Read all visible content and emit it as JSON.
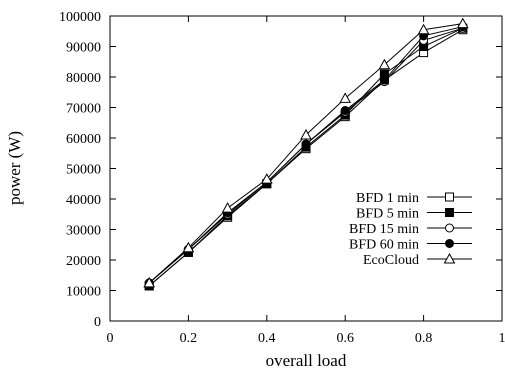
{
  "chart_data": {
    "type": "line",
    "xlabel": "overall load",
    "ylabel": "power (W)",
    "xlim": [
      0,
      1
    ],
    "ylim": [
      0,
      100000
    ],
    "x_ticks": [
      0,
      0.2,
      0.4,
      0.6,
      0.8,
      1
    ],
    "x_tick_labels": [
      "0",
      "0.2",
      "0.4",
      "0.6",
      "0.8",
      "1"
    ],
    "y_ticks": [
      0,
      10000,
      20000,
      30000,
      40000,
      50000,
      60000,
      70000,
      80000,
      90000,
      100000
    ],
    "y_tick_labels": [
      "0",
      "10000",
      "20000",
      "30000",
      "40000",
      "50000",
      "60000",
      "70000",
      "80000",
      "90000",
      "100000"
    ],
    "grid": false,
    "legend_position": "right",
    "x": [
      0.1,
      0.2,
      0.3,
      0.4,
      0.5,
      0.6,
      0.7,
      0.8,
      0.9
    ],
    "series": [
      {
        "name": "BFD 1 min",
        "marker": "open-square",
        "values": [
          11500,
          22500,
          34000,
          45000,
          56500,
          67000,
          79000,
          88000,
          95500
        ]
      },
      {
        "name": "BFD 5 min",
        "marker": "filled-square",
        "values": [
          11500,
          22500,
          34500,
          45000,
          57000,
          67500,
          81000,
          90000,
          96000
        ]
      },
      {
        "name": "BFD 15 min",
        "marker": "open-circle",
        "values": [
          12500,
          23500,
          35000,
          45500,
          58000,
          68500,
          78500,
          92000,
          96000
        ]
      },
      {
        "name": "BFD 60 min",
        "marker": "filled-circle",
        "values": [
          12500,
          23500,
          35500,
          45500,
          58000,
          69000,
          79000,
          93500,
          96500
        ]
      },
      {
        "name": "EcoCloud",
        "marker": "open-triangle",
        "values": [
          12500,
          24000,
          37000,
          46500,
          61000,
          73000,
          84000,
          95500,
          97500
        ]
      }
    ]
  }
}
